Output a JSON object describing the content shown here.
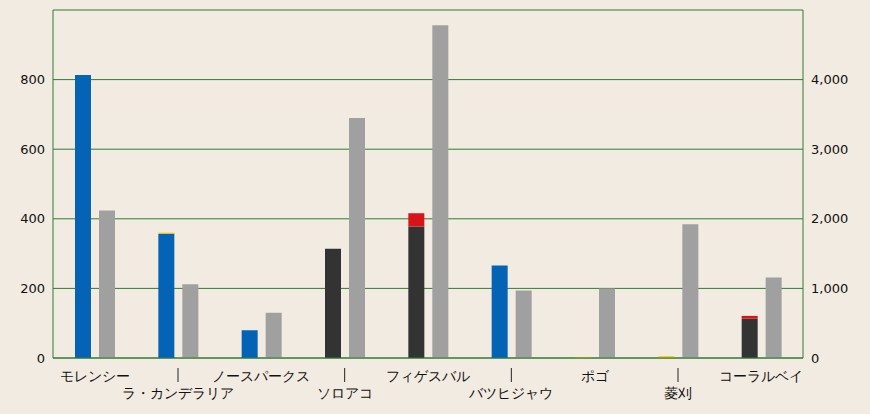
{
  "chart_data": {
    "type": "bar",
    "categories": [
      "モレンシー",
      "ラ・カンデラリア",
      "ノースパークス",
      "ソロアコ",
      "フィゲスバル",
      "バツヒジャウ",
      "ポゴ",
      "菱刈",
      "コーラルベイ"
    ],
    "series": [
      {
        "color": "#0563b5",
        "values": [
          813,
          357,
          80,
          0,
          0,
          266,
          0,
          0,
          0
        ]
      },
      {
        "color": "#333333",
        "values": [
          0,
          0,
          0,
          314,
          378,
          0,
          0,
          0,
          113
        ]
      },
      {
        "color": "#d7141a",
        "values": [
          0,
          0,
          0,
          0,
          38,
          0,
          0,
          0,
          8
        ]
      },
      {
        "color": "#f0c000",
        "values": [
          0,
          3,
          0,
          0,
          0,
          0,
          3,
          5,
          0
        ]
      },
      {
        "color": "#a0a0a0",
        "axis": "y2",
        "values": [
          2120,
          1060,
          650,
          3450,
          4780,
          970,
          1000,
          1920,
          1155
        ]
      }
    ],
    "ylim": [
      0,
      1000
    ],
    "yticks": [
      0,
      200,
      400,
      600,
      800
    ],
    "y2lim": [
      0,
      5000
    ],
    "y2ticks": [
      0,
      {
        "value": 1000,
        "label": "1,000"
      },
      {
        "value": 2000,
        "label": "2,000"
      },
      {
        "value": 3000,
        "label": "3,000"
      },
      {
        "value": 4000,
        "label": "4,000"
      }
    ],
    "stacked": true,
    "grid": true
  }
}
